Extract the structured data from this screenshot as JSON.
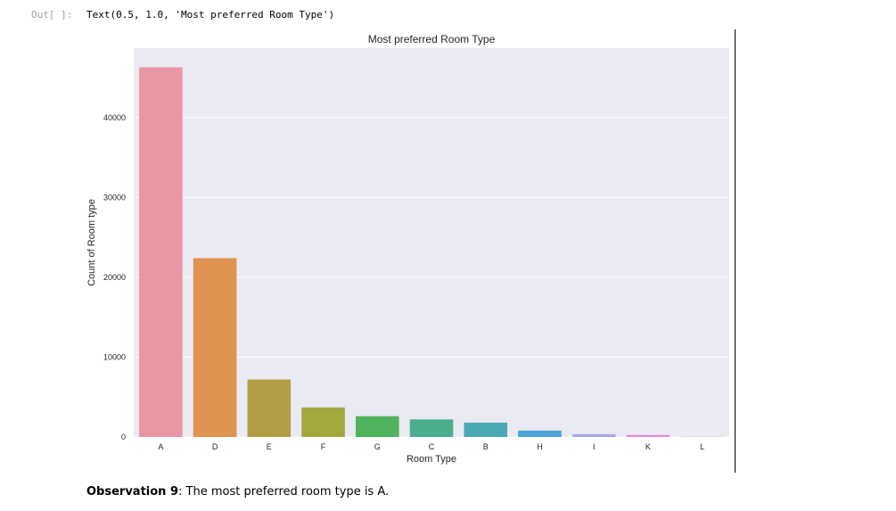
{
  "output_cell": {
    "prompt": "Out[ ]:",
    "text": "Text(0.5, 1.0, 'Most preferred Room Type')"
  },
  "observation": {
    "label": "Observation 9",
    "text": ": The most preferred room type is A."
  },
  "chart_data": {
    "type": "bar",
    "title": "Most preferred Room Type",
    "xlabel": "Room Type",
    "ylabel": "Count of Room type",
    "categories": [
      "A",
      "D",
      "E",
      "F",
      "G",
      "C",
      "B",
      "H",
      "I",
      "K",
      "L"
    ],
    "values": [
      46300,
      22400,
      7200,
      3700,
      2600,
      2200,
      1800,
      800,
      350,
      250,
      30
    ],
    "colors": [
      "#ea96a3",
      "#de9350",
      "#b39d46",
      "#a3a93d",
      "#4fb25c",
      "#4aae8c",
      "#49aab6",
      "#4ba3d8",
      "#a5a9ef",
      "#e48ddb",
      "#e895c9"
    ],
    "yticks": [
      0,
      10000,
      20000,
      30000,
      40000
    ],
    "ylim": [
      0,
      48700
    ],
    "grid": true
  }
}
